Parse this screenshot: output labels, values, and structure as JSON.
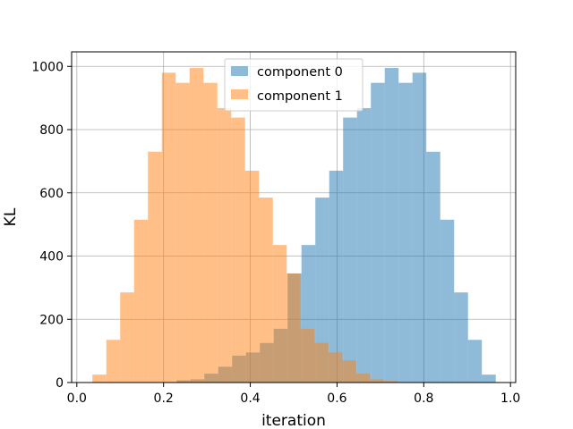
{
  "chart_data": {
    "type": "bar",
    "title": "",
    "xlabel": "iteration",
    "ylabel": "KL",
    "xlim": [
      -0.012,
      1.012
    ],
    "ylim": [
      0,
      1046
    ],
    "grid": true,
    "legend_position": "upper center",
    "x_ticks": [
      0.0,
      0.2,
      0.4,
      0.6,
      0.8,
      1.0
    ],
    "x_tick_labels": [
      "0.0",
      "0.2",
      "0.4",
      "0.6",
      "0.8",
      "1.0"
    ],
    "y_ticks": [
      0,
      200,
      400,
      600,
      800,
      1000
    ],
    "y_tick_labels": [
      "0",
      "200",
      "400",
      "600",
      "800",
      "1000"
    ],
    "series": [
      {
        "name": "component 0",
        "color": "#1f77b4",
        "alpha": 0.5,
        "bins": [
          [
            0.23,
            0.262,
            7
          ],
          [
            0.262,
            0.294,
            10
          ],
          [
            0.294,
            0.326,
            28
          ],
          [
            0.326,
            0.358,
            50
          ],
          [
            0.358,
            0.39,
            85
          ],
          [
            0.39,
            0.422,
            95
          ],
          [
            0.422,
            0.454,
            125
          ],
          [
            0.454,
            0.486,
            170
          ],
          [
            0.486,
            0.518,
            345
          ],
          [
            0.518,
            0.55,
            435
          ],
          [
            0.55,
            0.582,
            585
          ],
          [
            0.582,
            0.614,
            670
          ],
          [
            0.614,
            0.646,
            838
          ],
          [
            0.646,
            0.678,
            868
          ],
          [
            0.678,
            0.71,
            948
          ],
          [
            0.71,
            0.742,
            995
          ],
          [
            0.742,
            0.774,
            948
          ],
          [
            0.774,
            0.806,
            980
          ],
          [
            0.806,
            0.838,
            730
          ],
          [
            0.838,
            0.87,
            515
          ],
          [
            0.87,
            0.902,
            285
          ],
          [
            0.902,
            0.934,
            135
          ],
          [
            0.934,
            0.966,
            25
          ]
        ]
      },
      {
        "name": "component 1",
        "color": "#ff7f0e",
        "alpha": 0.5,
        "bins": [
          [
            0.036,
            0.068,
            25
          ],
          [
            0.068,
            0.1,
            135
          ],
          [
            0.1,
            0.132,
            285
          ],
          [
            0.132,
            0.164,
            515
          ],
          [
            0.164,
            0.196,
            730
          ],
          [
            0.196,
            0.228,
            980
          ],
          [
            0.228,
            0.26,
            948
          ],
          [
            0.26,
            0.292,
            995
          ],
          [
            0.292,
            0.324,
            948
          ],
          [
            0.324,
            0.356,
            868
          ],
          [
            0.356,
            0.388,
            838
          ],
          [
            0.388,
            0.42,
            670
          ],
          [
            0.42,
            0.452,
            585
          ],
          [
            0.452,
            0.484,
            435
          ],
          [
            0.484,
            0.516,
            345
          ],
          [
            0.516,
            0.548,
            170
          ],
          [
            0.548,
            0.58,
            125
          ],
          [
            0.58,
            0.612,
            95
          ],
          [
            0.612,
            0.644,
            70
          ],
          [
            0.644,
            0.676,
            28
          ],
          [
            0.676,
            0.708,
            10
          ],
          [
            0.708,
            0.74,
            5
          ]
        ]
      }
    ]
  }
}
